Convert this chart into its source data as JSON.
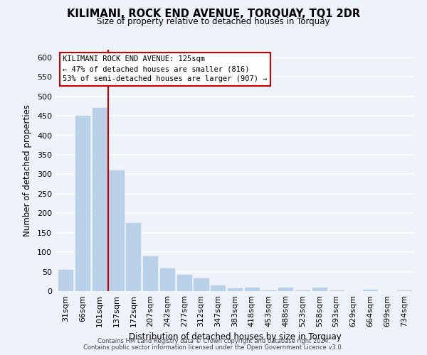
{
  "title": "KILIMANI, ROCK END AVENUE, TORQUAY, TQ1 2DR",
  "subtitle": "Size of property relative to detached houses in Torquay",
  "xlabel": "Distribution of detached houses by size in Torquay",
  "ylabel": "Number of detached properties",
  "bar_color": "#b8d0e8",
  "marker_color": "#cc0000",
  "annotation_title": "KILIMANI ROCK END AVENUE: 125sqm",
  "annotation_line1": "← 47% of detached houses are smaller (816)",
  "annotation_line2": "53% of semi-detached houses are larger (907) →",
  "categories": [
    "31sqm",
    "66sqm",
    "101sqm",
    "137sqm",
    "172sqm",
    "207sqm",
    "242sqm",
    "277sqm",
    "312sqm",
    "347sqm",
    "383sqm",
    "418sqm",
    "453sqm",
    "488sqm",
    "523sqm",
    "558sqm",
    "593sqm",
    "629sqm",
    "664sqm",
    "699sqm",
    "734sqm"
  ],
  "values": [
    55,
    450,
    470,
    310,
    175,
    90,
    58,
    42,
    32,
    15,
    7,
    10,
    2,
    10,
    2,
    10,
    2,
    0,
    3,
    0,
    2
  ],
  "ylim": [
    0,
    620
  ],
  "yticks": [
    0,
    50,
    100,
    150,
    200,
    250,
    300,
    350,
    400,
    450,
    500,
    550,
    600
  ],
  "footer1": "Contains HM Land Registry data © Crown copyright and database right 2024.",
  "footer2": "Contains public sector information licensed under the Open Government Licence v3.0.",
  "bg_color": "#eef2f9",
  "plot_bg_color": "#eef2f9"
}
